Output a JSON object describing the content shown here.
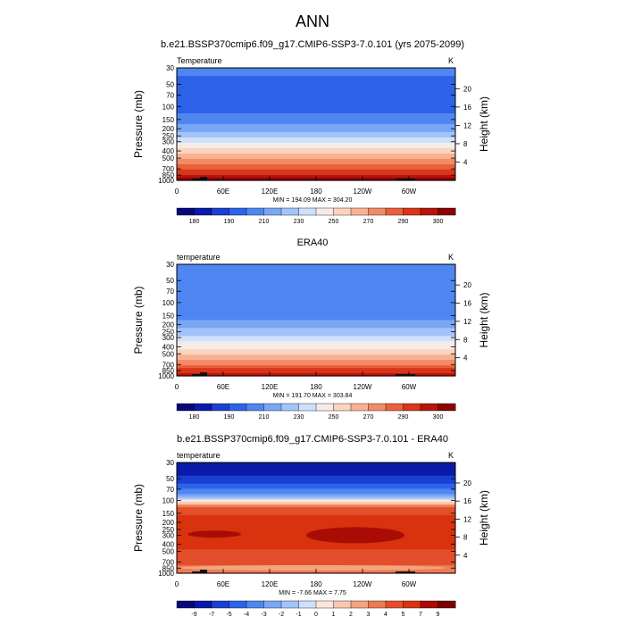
{
  "main_title": "ANN",
  "colors": {
    "temperature_scale": [
      "#08087a",
      "#0a1aa8",
      "#1a40d2",
      "#2d63e8",
      "#4f86f2",
      "#7aa6f6",
      "#a3c4fa",
      "#cfe0fc",
      "#f5ece8",
      "#fbd4c0",
      "#f8b293",
      "#f28a66",
      "#e9603a",
      "#d8351a",
      "#b8140c",
      "#8a0404"
    ],
    "difference_scale": [
      "#08087a",
      "#0a1aa8",
      "#1a40d2",
      "#2d63e8",
      "#4f86f2",
      "#7aa6f6",
      "#a3c4fa",
      "#cfe0fc",
      "#fce6dc",
      "#f9c8b0",
      "#f4a47f",
      "#ee7b52",
      "#e34f2a",
      "#d8320f",
      "#a80c04",
      "#7a0202"
    ],
    "terrain": "#111111"
  },
  "chart_data": [
    {
      "type": "heatmap",
      "title": "b.e21.BSSP370cmip6.f09_g17.CMIP6-SSP3-7.0.101 (yrs 2075-2099)",
      "left_label": "Temperature",
      "right_label": "K",
      "ylabel": "Pressure (mb)",
      "y2label": "Height (km)",
      "pressure_ticks": [
        "30",
        "50",
        "70",
        "100",
        "150",
        "200",
        "250",
        "300",
        "400",
        "500",
        "700",
        "850",
        "1000"
      ],
      "height_ticks": [
        "20",
        "16",
        "12",
        "8",
        "4"
      ],
      "x_ticks": [
        "0",
        "60E",
        "120E",
        "180",
        "120W",
        "60W"
      ],
      "stats": "MIN = 194.09  MAX = 304.20",
      "min": 194.09,
      "max": 304.2,
      "colorbar_labels": [
        "180",
        "190",
        "210",
        "230",
        "250",
        "270",
        "290",
        "300"
      ],
      "profile": [
        {
          "p": 30,
          "v": 208
        },
        {
          "p": 50,
          "v": 207
        },
        {
          "p": 70,
          "v": 206
        },
        {
          "p": 100,
          "v": 205
        },
        {
          "p": 150,
          "v": 210
        },
        {
          "p": 200,
          "v": 220
        },
        {
          "p": 250,
          "v": 230
        },
        {
          "p": 300,
          "v": 238
        },
        {
          "p": 400,
          "v": 252
        },
        {
          "p": 500,
          "v": 263
        },
        {
          "p": 700,
          "v": 280
        },
        {
          "p": 850,
          "v": 290
        },
        {
          "p": 1000,
          "v": 300
        }
      ]
    },
    {
      "type": "heatmap",
      "title": "ERA40",
      "left_label": "temperature",
      "right_label": "K",
      "ylabel": "Pressure (mb)",
      "y2label": "Height (km)",
      "pressure_ticks": [
        "30",
        "50",
        "70",
        "100",
        "150",
        "200",
        "250",
        "300",
        "400",
        "500",
        "700",
        "850",
        "1000"
      ],
      "height_ticks": [
        "20",
        "16",
        "12",
        "8",
        "4"
      ],
      "x_ticks": [
        "0",
        "60E",
        "120E",
        "180",
        "120W",
        "60W"
      ],
      "stats": "MIN = 191.70  MAX = 303.84",
      "min": 191.7,
      "max": 303.84,
      "colorbar_labels": [
        "180",
        "190",
        "210",
        "230",
        "250",
        "270",
        "290",
        "300"
      ],
      "profile": [
        {
          "p": 30,
          "v": 215
        },
        {
          "p": 50,
          "v": 212
        },
        {
          "p": 70,
          "v": 210
        },
        {
          "p": 100,
          "v": 208
        },
        {
          "p": 150,
          "v": 212
        },
        {
          "p": 200,
          "v": 220
        },
        {
          "p": 250,
          "v": 228
        },
        {
          "p": 300,
          "v": 235
        },
        {
          "p": 400,
          "v": 246
        },
        {
          "p": 500,
          "v": 256
        },
        {
          "p": 700,
          "v": 273
        },
        {
          "p": 850,
          "v": 284
        },
        {
          "p": 1000,
          "v": 294
        }
      ]
    },
    {
      "type": "heatmap",
      "title": "b.e21.BSSP370cmip6.f09_g17.CMIP6-SSP3-7.0.101 - ERA40",
      "left_label": "temperature",
      "right_label": "K",
      "ylabel": "Pressure (mb)",
      "y2label": "Height (km)",
      "pressure_ticks": [
        "30",
        "50",
        "70",
        "100",
        "150",
        "200",
        "250",
        "300",
        "400",
        "500",
        "700",
        "850",
        "1000"
      ],
      "height_ticks": [
        "20",
        "16",
        "12",
        "8",
        "4"
      ],
      "x_ticks": [
        "0",
        "60E",
        "120E",
        "180",
        "120W",
        "60W"
      ],
      "stats": "MIN = -7.66  MAX =  7.75",
      "min": -7.66,
      "max": 7.75,
      "colorbar_labels": [
        "-9",
        "-7",
        "-5",
        "-4",
        "-3",
        "-2",
        "-1",
        "0",
        "1",
        "2",
        "3",
        "4",
        "5",
        "7",
        "9"
      ],
      "profile": [
        {
          "p": 30,
          "v": -7.5
        },
        {
          "p": 50,
          "v": -6.5
        },
        {
          "p": 70,
          "v": -4.5
        },
        {
          "p": 90,
          "v": -2
        },
        {
          "p": 100,
          "v": 0.5
        },
        {
          "p": 120,
          "v": 4
        },
        {
          "p": 150,
          "v": 5.5
        },
        {
          "p": 200,
          "v": 6
        },
        {
          "p": 300,
          "v": 6.5
        },
        {
          "p": 400,
          "v": 6
        },
        {
          "p": 500,
          "v": 5.5
        },
        {
          "p": 700,
          "v": 5
        },
        {
          "p": 850,
          "v": 4
        },
        {
          "p": 1000,
          "v": 3.5
        }
      ]
    }
  ]
}
